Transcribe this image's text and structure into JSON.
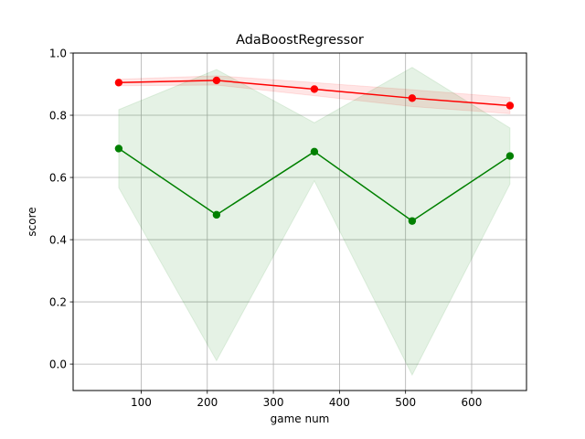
{
  "chart_data": {
    "type": "line",
    "title": "AdaBoostRegressor",
    "xlabel": "game num",
    "ylabel": "score",
    "xlim": [
      -3,
      683
    ],
    "ylim": [
      -0.085,
      1.0
    ],
    "xticks": [
      100,
      200,
      300,
      400,
      500,
      600
    ],
    "yticks": [
      0.0,
      0.2,
      0.4,
      0.6,
      0.8,
      1.0
    ],
    "xtick_labels": [
      "100",
      "200",
      "300",
      "400",
      "500",
      "600"
    ],
    "ytick_labels": [
      "0.0",
      "0.2",
      "0.4",
      "0.6",
      "0.8",
      "1.0"
    ],
    "grid": true,
    "x": [
      66,
      214,
      362,
      510,
      658
    ],
    "series": [
      {
        "color": "#ff0000",
        "band_color": "#ff0000",
        "values": [
          0.905,
          0.912,
          0.884,
          0.855,
          0.831
        ],
        "lower": [
          0.895,
          0.897,
          0.863,
          0.828,
          0.805
        ],
        "upper": [
          0.916,
          0.927,
          0.905,
          0.882,
          0.857
        ]
      },
      {
        "color": "#008000",
        "band_color": "#008000",
        "values": [
          0.693,
          0.48,
          0.683,
          0.46,
          0.669
        ],
        "lower": [
          0.567,
          0.011,
          0.589,
          -0.035,
          0.579
        ],
        "upper": [
          0.818,
          0.947,
          0.776,
          0.954,
          0.759
        ]
      }
    ]
  }
}
